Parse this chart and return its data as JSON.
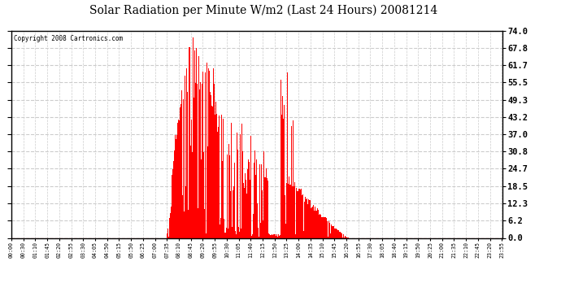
{
  "title": "Solar Radiation per Minute W/m2 (Last 24 Hours) 20081214",
  "copyright": "Copyright 2008 Cartronics.com",
  "yticks": [
    0.0,
    6.2,
    12.3,
    18.5,
    24.7,
    30.8,
    37.0,
    43.2,
    49.3,
    55.5,
    61.7,
    67.8,
    74.0
  ],
  "ymax": 74.0,
  "ymin": 0.0,
  "bar_color": "#ff0000",
  "background_color": "#ffffff",
  "grid_color": "#cccccc",
  "baseline_color": "#ff0000",
  "xtick_labels": [
    "00:00",
    "00:30",
    "01:10",
    "01:45",
    "02:20",
    "02:55",
    "03:30",
    "04:05",
    "04:50",
    "05:15",
    "05:50",
    "06:25",
    "07:00",
    "07:35",
    "08:10",
    "08:45",
    "09:20",
    "09:55",
    "10:30",
    "11:05",
    "11:40",
    "12:15",
    "12:50",
    "13:25",
    "14:00",
    "14:35",
    "15:10",
    "15:45",
    "16:20",
    "16:55",
    "17:30",
    "18:05",
    "18:40",
    "19:15",
    "19:50",
    "20:25",
    "21:00",
    "21:35",
    "22:10",
    "22:45",
    "23:20",
    "23:55"
  ],
  "num_minutes": 1440
}
